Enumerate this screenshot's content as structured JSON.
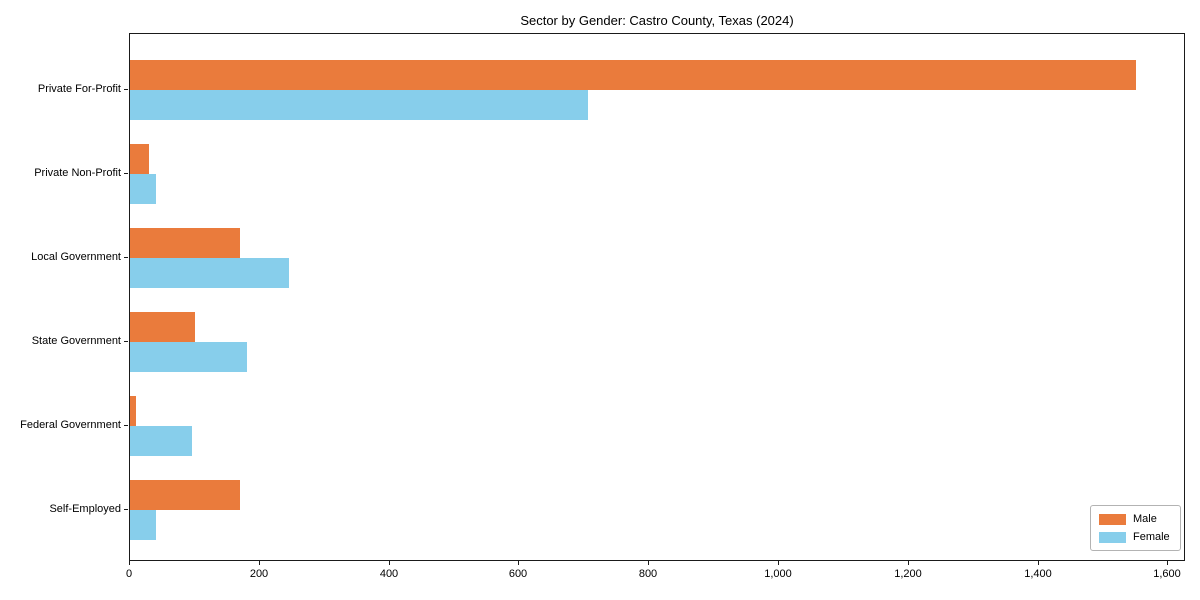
{
  "chart_data": {
    "type": "bar",
    "orientation": "horizontal",
    "title": "Sector by Gender: Castro County, Texas (2024)",
    "categories": [
      "Private For-Profit",
      "Private Non-Profit",
      "Local Government",
      "State Government",
      "Federal Government",
      "Self-Employed"
    ],
    "series": [
      {
        "name": "Male",
        "color": "#ea7b3c",
        "values": [
          1550,
          30,
          170,
          100,
          10,
          170
        ]
      },
      {
        "name": "Female",
        "color": "#87ceeb",
        "values": [
          705,
          40,
          245,
          180,
          95,
          40
        ]
      }
    ],
    "xlabel": "",
    "ylabel": "",
    "xlim": [
      0,
      1627
    ],
    "xticks": [
      0,
      200,
      400,
      600,
      800,
      1000,
      1200,
      1400,
      1600
    ],
    "xtick_labels": [
      "0",
      "200",
      "400",
      "600",
      "800",
      "1,000",
      "1,200",
      "1,400",
      "1,600"
    ],
    "grid": false,
    "legend_position": "lower right"
  }
}
